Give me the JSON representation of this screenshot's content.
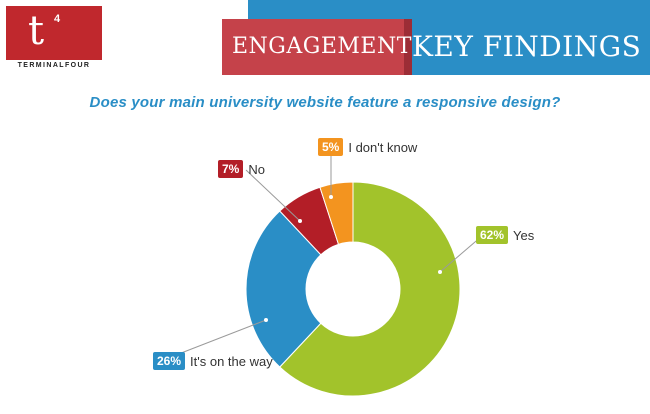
{
  "brand": {
    "logo_letter": "t",
    "logo_superscript": "4",
    "logo_name": "TERMINALFOUR"
  },
  "banner": {
    "left_text": "ENGAGEMENT",
    "right_text": "KEY FINDINGS"
  },
  "question": "Does your main university website feature a responsive design?",
  "chart_data": {
    "type": "pie",
    "subtype": "donut",
    "title": "Does your main university website feature a responsive design?",
    "slices": [
      {
        "label": "Yes",
        "value": 62,
        "value_label": "62%",
        "color": "#a2c32b"
      },
      {
        "label": "It's on the way",
        "value": 26,
        "value_label": "26%",
        "color": "#2a8ec6"
      },
      {
        "label": "No",
        "value": 7,
        "value_label": "7%",
        "color": "#b31e27"
      },
      {
        "label": "I don't know",
        "value": 5,
        "value_label": "5%",
        "color": "#f3941f"
      }
    ],
    "unit": "%"
  }
}
